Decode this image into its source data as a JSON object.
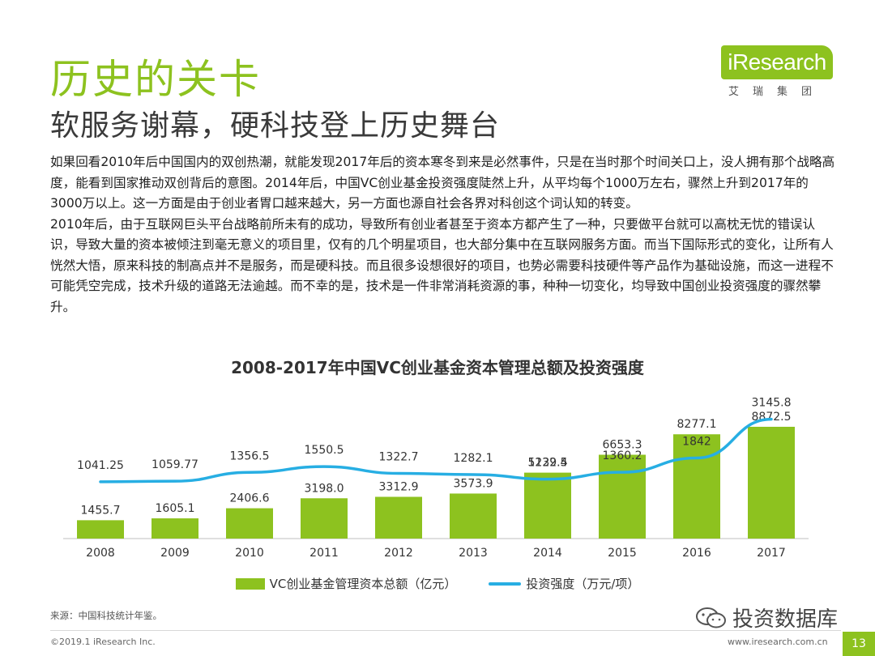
{
  "title": "历史的关卡",
  "subtitle": "软服务谢幕，硬科技登上历史舞台",
  "logo": {
    "text": "iResearch",
    "sub": "艾瑞集团"
  },
  "paragraphs": [
    "如果回看2010年后中国国内的双创热潮，就能发现2017年后的资本寒冬到来是必然事件，只是在当时那个时间关口上，没人拥有那个战略高度，能看到国家推动双创背后的意图。2014年后，中国VC创业基金投资强度陡然上升，从平均每个1000万左右，骤然上升到2017年的3000万以上。这一方面是由于创业者胃口越来越大，另一方面也源自社会各界对科创这个词认知的转变。",
    "2010年后，由于互联网巨头平台战略前所未有的成功，导致所有创业者甚至于资本方都产生了一种，只要做平台就可以高枕无忧的错误认识，导致大量的资本被倾注到毫无意义的项目里，仅有的几个明星项目，也大部分集中在互联网服务方面。而当下国际形式的变化，让所有人恍然大悟，原来科技的制高点并不是服务，而是硬科技。而且很多设想很好的项目，也势必需要科技硬件等产品作为基础设施，而这一进程不可能凭空完成，技术升级的道路无法逾越。而不幸的是，技术是一件非常消耗资源的事，种种一切变化，均导致中国创业投资强度的骤然攀升。"
  ],
  "chart_data": {
    "type": "bar",
    "title": "2008-2017年中国VC创业基金资本管理总额及投资强度",
    "categories": [
      "2008",
      "2009",
      "2010",
      "2011",
      "2012",
      "2013",
      "2014",
      "2015",
      "2016",
      "2017"
    ],
    "series": [
      {
        "name": "VC创业基金管理资本总额（亿元）",
        "type": "bar",
        "values": [
          1455.7,
          1605.1,
          2406.6,
          3198.0,
          3312.9,
          3573.9,
          5232.4,
          6653.3,
          8277.1,
          8872.5
        ],
        "labels": [
          "1455.7",
          "1605.1",
          "2406.6",
          "3198.0",
          "3312.9",
          "3573.9",
          "5232.4",
          "6653.3",
          "8277.1",
          "8872.5"
        ],
        "color": "#8dc21f"
      },
      {
        "name": "投资强度（万元/项）",
        "type": "line",
        "values": [
          1041.25,
          1059.77,
          1356.5,
          1550.5,
          1322.7,
          1282.1,
          1129.5,
          1360.2,
          1842,
          3145.8
        ],
        "labels": [
          "1041.25",
          "1059.77",
          "1356.5",
          "1550.5",
          "1322.7",
          "1282.1",
          "1129.5",
          "1360.2",
          "1842",
          "3145.8"
        ],
        "color": "#27aee3"
      }
    ],
    "legend": "bottom",
    "grid": false
  },
  "source": "来源：中国科技统计年鉴。",
  "footer": {
    "copyright": "©2019.1 iResearch Inc.",
    "site": "www.iresearch.com.cn",
    "page": "13"
  },
  "watermark": "投资数据库",
  "colors": {
    "accent": "#8dc21f",
    "line": "#27aee3"
  }
}
